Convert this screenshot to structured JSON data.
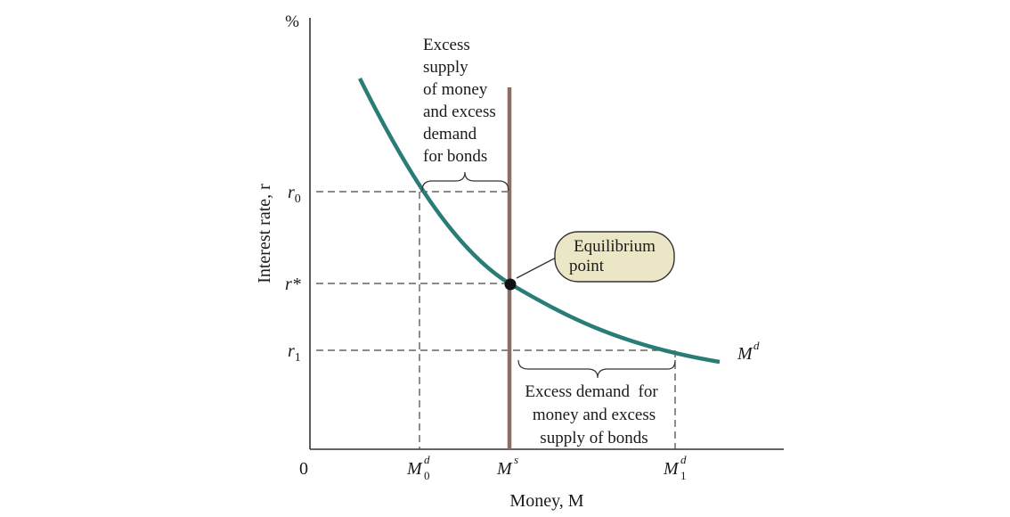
{
  "diagram": {
    "y_axis_unit": "%",
    "y_axis_title": "Interest rate, r",
    "x_axis_title": "Money, M",
    "origin_label": "0",
    "rate_labels": {
      "r0": {
        "base": "r",
        "sub": "0"
      },
      "rstar": {
        "base": "r*"
      },
      "r1": {
        "base": "r",
        "sub": "1"
      }
    },
    "money_labels": {
      "md0": {
        "base": "M",
        "sup": "d",
        "sub": "0"
      },
      "ms": {
        "base": "M",
        "sup": "s"
      },
      "md1": {
        "base": "M",
        "sup": "d",
        "sub": "1"
      }
    },
    "curve_label": {
      "base": "M",
      "sup": "d"
    },
    "excess_supply_lines": [
      "Excess",
      "supply",
      "of money",
      "and excess",
      "demand",
      "for bonds"
    ],
    "excess_demand_lines": [
      "Excess demand  for",
      "money and excess",
      "supply of bonds"
    ],
    "equilibrium_lines": [
      "Equilibrium",
      "point"
    ],
    "colors": {
      "demand_curve": "#2a7d76",
      "supply_line": "#8c6e64",
      "callout_fill": "#ebe6c6",
      "callout_stroke": "#333333",
      "point": "#111111"
    }
  }
}
